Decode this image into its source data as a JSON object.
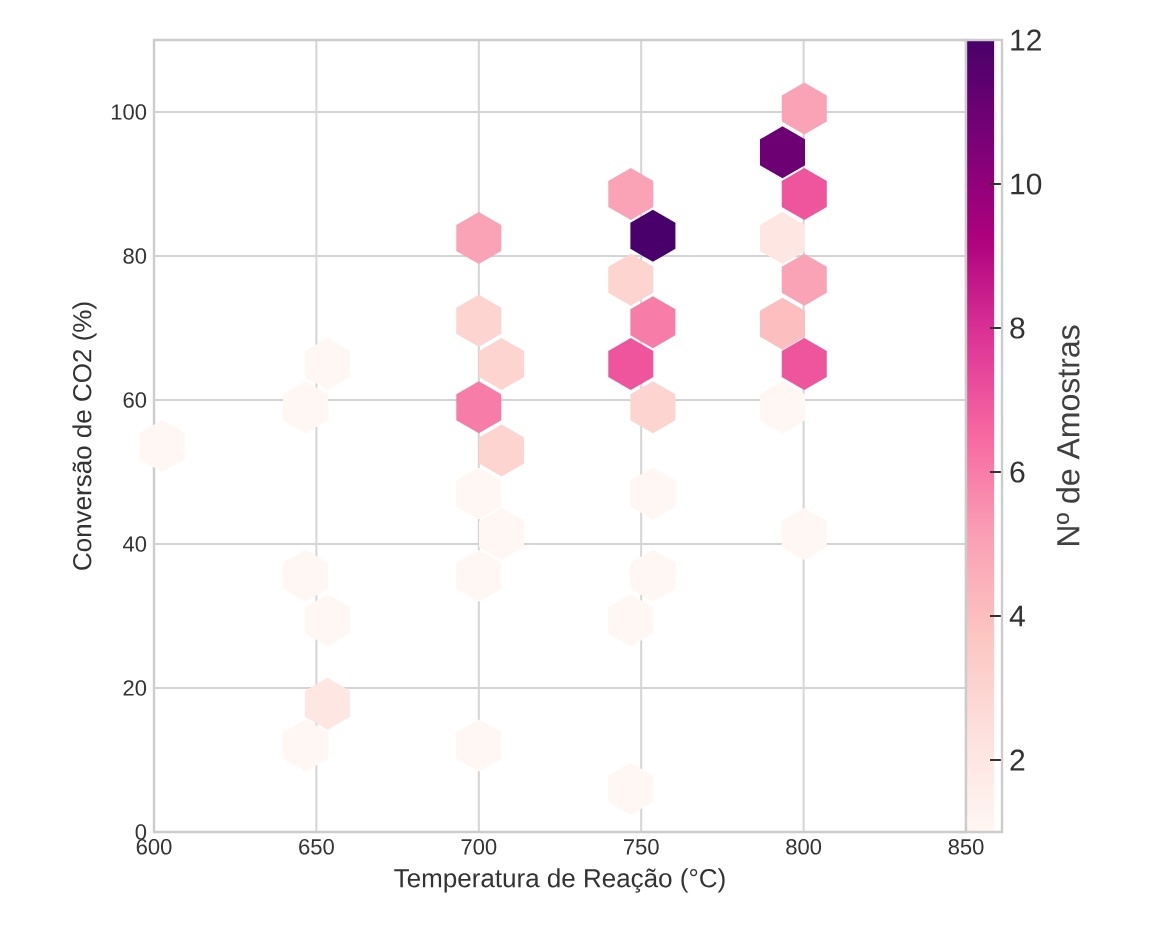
{
  "chart_data": {
    "type": "scatter",
    "xlabel": "Temperatura de Reação (°C)",
    "ylabel": "Conversão de CO2 (%)",
    "clabel": "Nº de Amostras",
    "x": [
      602.5,
      653.4,
      646.7,
      646.7,
      653.4,
      653.4,
      646.7,
      700,
      700,
      707,
      700,
      707,
      700,
      707,
      700,
      700,
      746.8,
      753.6,
      746.8,
      753.6,
      746.8,
      753.6,
      753.6,
      753.6,
      746.8,
      746.8,
      800.2,
      793.5,
      800.2,
      793.5,
      800.2,
      793.5,
      800.2,
      793.5,
      800.2
    ],
    "values": [
      53.6,
      65,
      59,
      35.6,
      29.4,
      17.8,
      12,
      82.5,
      71,
      65,
      59,
      53,
      47,
      41.4,
      35.6,
      12,
      88.6,
      82.8,
      76.7,
      70.8,
      65,
      59,
      47,
      35.6,
      29.4,
      6,
      100.5,
      94.4,
      88.6,
      82.5,
      76.7,
      70.6,
      65,
      59,
      41.4
    ],
    "cvalues": [
      1,
      1,
      1,
      1,
      1,
      2,
      1,
      5,
      3,
      3,
      6,
      3,
      1,
      1,
      1,
      1,
      5,
      12,
      3,
      6,
      7,
      3,
      1,
      1,
      1,
      1,
      5,
      11,
      7,
      2,
      5,
      4,
      7,
      1,
      1
    ],
    "xlim": [
      600,
      850
    ],
    "ylim": [
      0,
      110
    ],
    "xticks": [
      600,
      650,
      700,
      750,
      800,
      850
    ],
    "yticks": [
      0,
      20,
      40,
      60,
      80,
      100
    ],
    "clim": [
      1,
      12
    ],
    "cticks": [
      2,
      4,
      6,
      8,
      10,
      12
    ],
    "grid": true
  }
}
